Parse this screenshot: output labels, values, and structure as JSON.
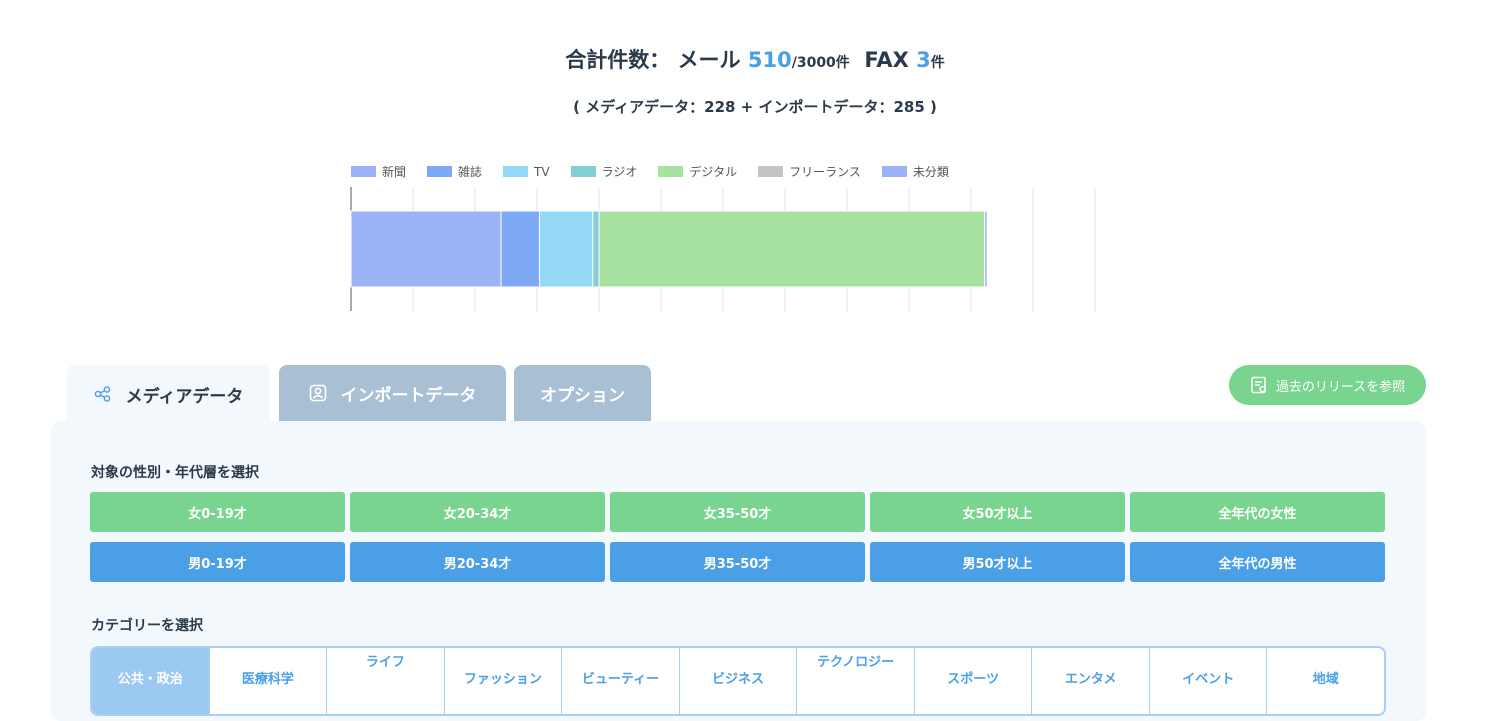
{
  "summary": {
    "prefix": "合計件数：",
    "mail_label": "メール",
    "mail_count": "510",
    "mail_limit": "/3000件",
    "fax_label": "FAX",
    "fax_count": "3",
    "fax_unit": "件",
    "breakdown": "( メディアデータ：228 + インポートデータ：285 )"
  },
  "chart_data": {
    "type": "bar",
    "orientation": "horizontal-stacked",
    "categories": [
      ""
    ],
    "series": [
      {
        "name": "新聞",
        "values": [
          121
        ],
        "color": "#9db3f8"
      },
      {
        "name": "雑誌",
        "values": [
          31
        ],
        "color": "#7ea9f4"
      },
      {
        "name": "TV",
        "values": [
          43
        ],
        "color": "#94daf6"
      },
      {
        "name": "ラジオ",
        "values": [
          5
        ],
        "color": "#84cfd6"
      },
      {
        "name": "デジタル",
        "values": [
          311
        ],
        "color": "#a7e2a0"
      },
      {
        "name": "フリーランス",
        "values": [
          0
        ],
        "color": "#c4c4c4"
      },
      {
        "name": "未分類",
        "values": [
          2
        ],
        "color": "#9db3f8"
      }
    ],
    "xlim": [
      0,
      600
    ],
    "grid": true,
    "legend": "top-left"
  },
  "tabs": [
    {
      "label": "メディアデータ",
      "icon": "share-icon",
      "active": true
    },
    {
      "label": "インポートデータ",
      "icon": "contact-icon",
      "active": false
    },
    {
      "label": "オプション",
      "active": false
    }
  ],
  "history_button": {
    "label": "過去のリリースを参照",
    "icon": "document-icon"
  },
  "demographics": {
    "label": "対象の性別・年代層を選択",
    "female": [
      "女0-19才",
      "女20-34才",
      "女35-50才",
      "女50才以上",
      "全年代の女性"
    ],
    "male": [
      "男0-19才",
      "男20-34才",
      "男35-50才",
      "男50才以上",
      "全年代の男性"
    ],
    "female_color": "#78d48f",
    "male_color": "#4a9fe6"
  },
  "categories": {
    "label": "カテゴリーを選択",
    "items": [
      {
        "label": "公共・政治",
        "active": true
      },
      {
        "label": "医療科学"
      },
      {
        "label": "ライフ"
      },
      {
        "label": "ファッション"
      },
      {
        "label": "ビューティー"
      },
      {
        "label": "ビジネス"
      },
      {
        "label": "テクノロジー"
      },
      {
        "label": "スポーツ"
      },
      {
        "label": "エンタメ"
      },
      {
        "label": "イベント"
      },
      {
        "label": "地域"
      }
    ]
  }
}
